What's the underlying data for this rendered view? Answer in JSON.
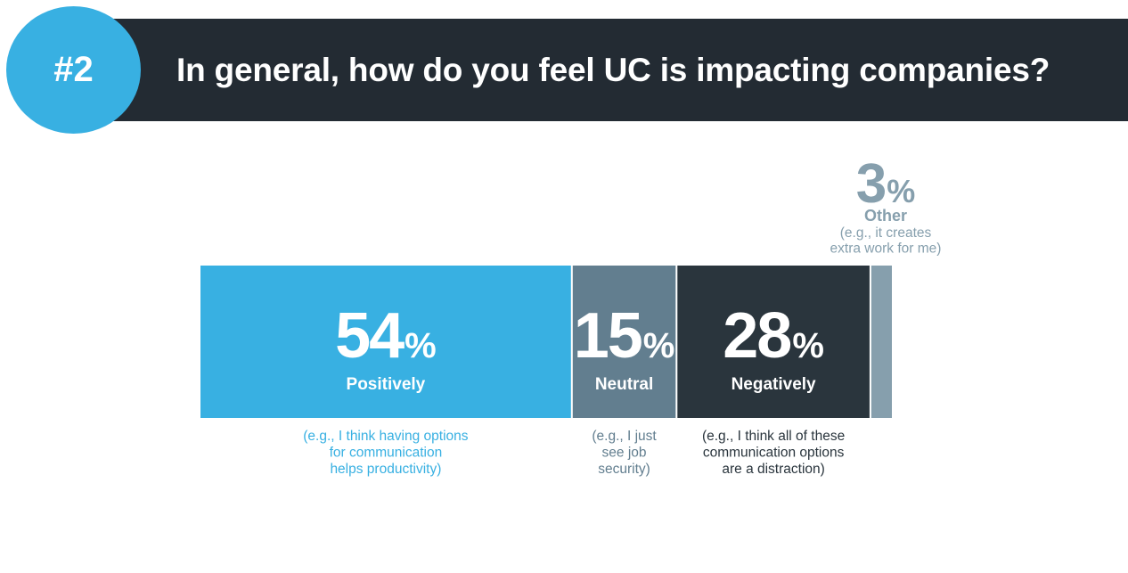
{
  "header": {
    "badge": "#2",
    "title": "In general, how do you feel UC is impacting companies?"
  },
  "chart_data": {
    "type": "bar",
    "orientation": "horizontal-stacked",
    "unit": "%",
    "segments": [
      {
        "value": 54,
        "label": "Positively",
        "note": [
          "(e.g., I think having options",
          "for communication",
          "helps productivity)"
        ],
        "color": "#38b0e2",
        "note_color": "#38b0e2"
      },
      {
        "value": 15,
        "label": "Neutral",
        "note": [
          "(e.g., I just",
          "see job",
          "security)"
        ],
        "color": "#627e8f",
        "note_color": "#627e8f"
      },
      {
        "value": 28,
        "label": "Negatively",
        "note": [
          "(e.g., I think all of these",
          "communication options",
          "are a distraction)"
        ],
        "color": "#2a353d",
        "note_color": "#2a353d"
      },
      {
        "value": 3,
        "label": "Other",
        "note": [
          "(e.g., it creates",
          "extra work for me)"
        ],
        "color": "#869fad",
        "note_color": "#869fad"
      }
    ]
  }
}
